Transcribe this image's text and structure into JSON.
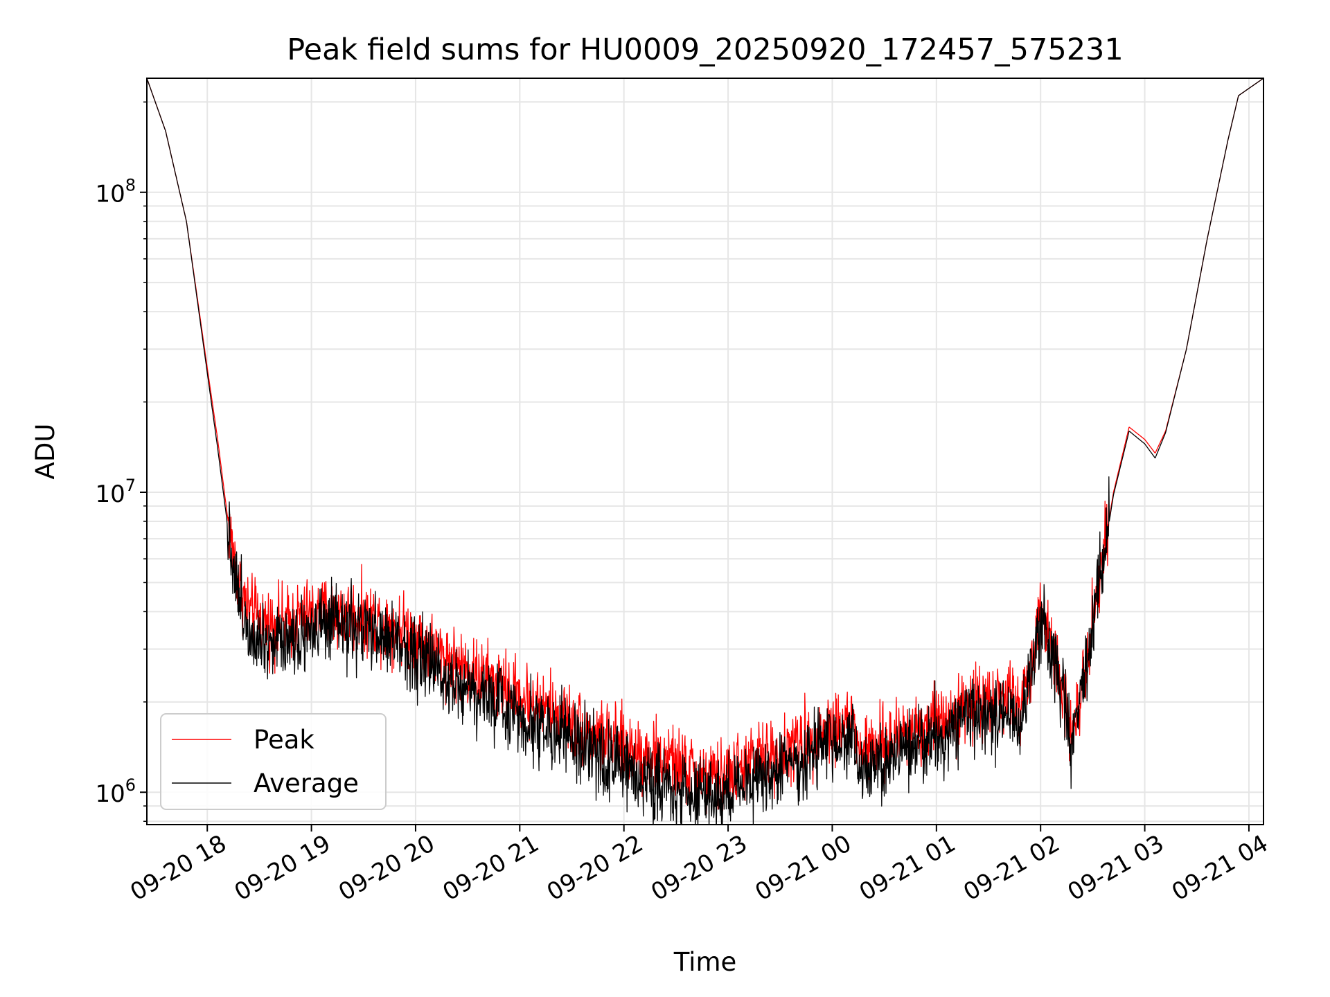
{
  "chart_data": {
    "type": "line",
    "title": "Peak field sums for HU0009_20250920_172457_575231",
    "xlabel": "Time",
    "ylabel": "ADU",
    "yscale": "log",
    "xlim": [
      17.42,
      28.14
    ],
    "ylim": [
      780000,
      240000000
    ],
    "x_ticks": [
      {
        "value": 18,
        "label": "09-20 18"
      },
      {
        "value": 19,
        "label": "09-20 19"
      },
      {
        "value": 20,
        "label": "09-20 20"
      },
      {
        "value": 21,
        "label": "09-20 21"
      },
      {
        "value": 22,
        "label": "09-20 22"
      },
      {
        "value": 23,
        "label": "09-20 23"
      },
      {
        "value": 24,
        "label": "09-21 00"
      },
      {
        "value": 25,
        "label": "09-21 01"
      },
      {
        "value": 26,
        "label": "09-21 02"
      },
      {
        "value": 27,
        "label": "09-21 03"
      },
      {
        "value": 28,
        "label": "09-21 04"
      }
    ],
    "y_ticks": [
      {
        "value": 1000000,
        "base": "10",
        "exp": "6"
      },
      {
        "value": 10000000,
        "base": "10",
        "exp": "7"
      },
      {
        "value": 100000000,
        "base": "10",
        "exp": "8"
      }
    ],
    "grid": true,
    "legend_position": "lower-left",
    "x_unit": "hours since 2025-09-20 00:00",
    "series": [
      {
        "name": "Peak",
        "color": "#ff0000",
        "noise": 0.12,
        "x": [
          17.42,
          17.6,
          17.8,
          18.0,
          18.1,
          18.2,
          18.3,
          18.4,
          18.6,
          18.8,
          19.0,
          19.2,
          19.4,
          19.6,
          19.8,
          20.0,
          20.3,
          20.6,
          21.0,
          21.4,
          21.8,
          22.2,
          22.6,
          22.85,
          23.0,
          23.3,
          23.6,
          24.0,
          24.2,
          24.25,
          24.5,
          24.8,
          25.2,
          25.5,
          25.7,
          25.8,
          25.9,
          26.0,
          26.15,
          26.3,
          26.5,
          26.7,
          26.85,
          27.0,
          27.1,
          27.2,
          27.4,
          27.6,
          27.8,
          27.9,
          28.14
        ],
        "y": [
          240000000,
          160000000,
          80000000,
          26000000,
          15000000,
          8000000,
          5000000,
          4000000,
          3600000,
          3700000,
          3900000,
          3950000,
          3900000,
          3750000,
          3600000,
          3300000,
          2800000,
          2450000,
          2100000,
          1800000,
          1500000,
          1350000,
          1200000,
          1100000,
          1150000,
          1300000,
          1400000,
          1650000,
          1750000,
          1350000,
          1450000,
          1650000,
          1850000,
          2100000,
          2050000,
          1900000,
          2500000,
          3800000,
          3000000,
          1500000,
          3800000,
          10000000,
          16500000,
          15000000,
          13500000,
          16000000,
          30000000,
          70000000,
          150000000,
          210000000,
          240000000
        ]
      },
      {
        "name": "Average",
        "color": "#000000",
        "noise": 0.13,
        "x": [
          17.42,
          17.6,
          17.8,
          18.0,
          18.1,
          18.2,
          18.3,
          18.4,
          18.6,
          18.8,
          19.0,
          19.2,
          19.4,
          19.6,
          19.8,
          20.0,
          20.3,
          20.6,
          21.0,
          21.4,
          21.8,
          22.2,
          22.6,
          22.85,
          23.0,
          23.3,
          23.6,
          24.0,
          24.2,
          24.25,
          24.5,
          24.8,
          25.2,
          25.5,
          25.7,
          25.8,
          25.9,
          26.0,
          26.15,
          26.3,
          26.5,
          26.7,
          26.85,
          27.0,
          27.1,
          27.2,
          27.4,
          27.6,
          27.8,
          27.9,
          28.14
        ],
        "y": [
          240000000,
          160000000,
          80000000,
          25000000,
          14000000,
          7500000,
          4500000,
          3500000,
          3200000,
          3300000,
          3500000,
          3550000,
          3500000,
          3350000,
          3200000,
          2900000,
          2450000,
          2150000,
          1800000,
          1550000,
          1280000,
          1120000,
          1000000,
          950000,
          1000000,
          1130000,
          1220000,
          1450000,
          1550000,
          1150000,
          1250000,
          1450000,
          1650000,
          1850000,
          1850000,
          1750000,
          2300000,
          3600000,
          2800000,
          1400000,
          3600000,
          9800000,
          16000000,
          14500000,
          13000000,
          15800000,
          30000000,
          70000000,
          150000000,
          210000000,
          240000000
        ]
      }
    ]
  }
}
